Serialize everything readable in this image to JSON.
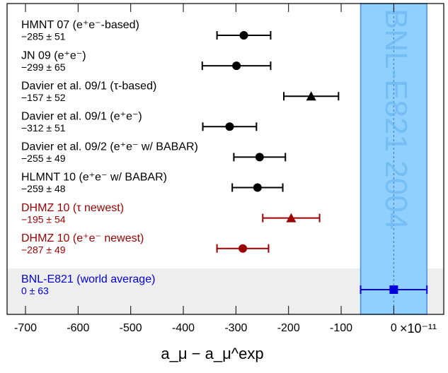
{
  "chart_data": {
    "type": "errorbar",
    "categories": [
      "HMNT 07 (e⁺e⁻-based)",
      "JN 09 (e⁺e⁻)",
      "Davier et al. 09/1 (τ-based)",
      "Davier et al. 09/1 (e⁺e⁻)",
      "Davier et al. 09/2 (e⁺e⁻ w/ BABAR)",
      "HLMNT 10 (e⁺e⁻ w/ BABAR)",
      "DHMZ 10 (τ newest)",
      "DHMZ 10 (e⁺e⁻ newest)",
      "BNL-E821 (world average)"
    ],
    "values": [
      -285,
      -299,
      -157,
      -312,
      -255,
      -259,
      -195,
      -287,
      0
    ],
    "errors": [
      51,
      65,
      52,
      51,
      49,
      48,
      54,
      49,
      63
    ],
    "value_labels": [
      "−285 ± 51",
      "−299 ± 65",
      "−157 ± 52",
      "−312 ± 51",
      "−255 ± 49",
      "−259 ± 48",
      "−195 ± 54",
      "−287 ± 49",
      "0 ± 63"
    ],
    "markers": [
      "circle",
      "circle",
      "triangle",
      "circle",
      "circle",
      "circle",
      "triangle",
      "circle",
      "square"
    ],
    "colors": [
      "#000000",
      "#000000",
      "#000000",
      "#000000",
      "#000000",
      "#000000",
      "#9b0000",
      "#9b0000",
      "#0000dd"
    ],
    "band_label": "BNL-E821 2004",
    "band_color": "#8fd0ff",
    "x_label": "a_μ − a_μ^exp",
    "x_multiplier": "×10⁻¹¹",
    "xlim": [
      -735,
      95
    ],
    "xticks": [
      -700,
      -600,
      -500,
      -400,
      -300,
      -200,
      -100,
      0
    ]
  }
}
